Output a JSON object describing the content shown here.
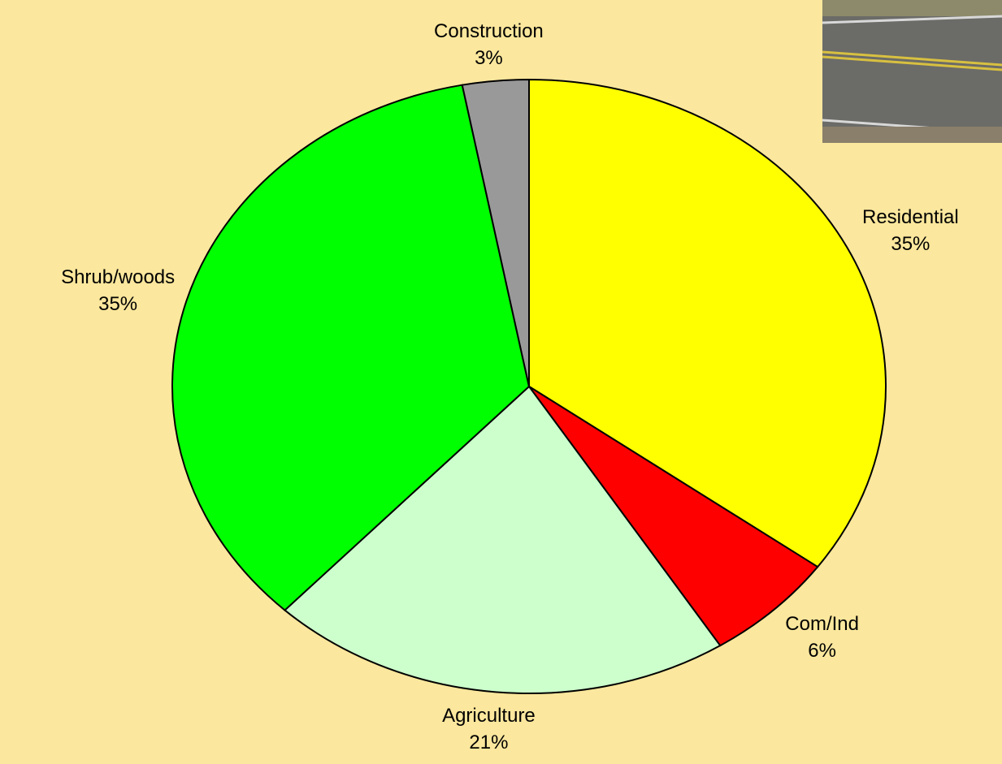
{
  "chart_data": {
    "type": "pie",
    "categories": [
      "Residential",
      "Com/Ind",
      "Agriculture",
      "Shrub/woods",
      "Construction"
    ],
    "values": [
      35,
      6,
      21,
      35,
      3
    ],
    "value_labels": [
      "35%",
      "6%",
      "21%",
      "35%",
      "3%"
    ],
    "colors": [
      "#ffff00",
      "#ff0000",
      "#ccffcc",
      "#00ff00",
      "#999999"
    ]
  }
}
